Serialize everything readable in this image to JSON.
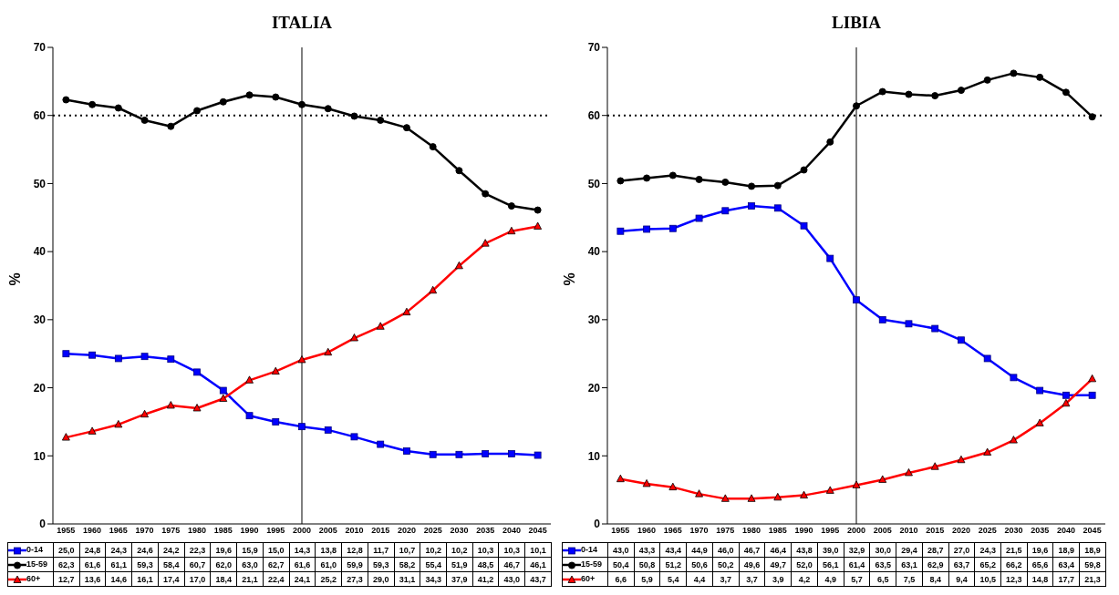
{
  "chart_data": [
    {
      "type": "line",
      "title": "ITALIA",
      "ylabel": "%",
      "legend": "bottom left",
      "categories": [
        "1955",
        "1960",
        "1965",
        "1970",
        "1975",
        "1980",
        "1985",
        "1990",
        "1995",
        "2000",
        "2005",
        "2010",
        "2015",
        "2020",
        "2025",
        "2030",
        "2035",
        "2040",
        "2045"
      ],
      "ylim": [
        0,
        70
      ],
      "yticks": [
        0,
        10,
        20,
        30,
        40,
        50,
        60,
        70
      ],
      "ref_lines": [
        {
          "axis": "y",
          "value": 60,
          "line_style": "dotted",
          "color": "#000000"
        },
        {
          "axis": "x",
          "value": "2000",
          "color": "#000000"
        }
      ],
      "series": [
        {
          "name": "0-14",
          "color": "#0000ff",
          "marker": "square",
          "values": [
            25.0,
            24.8,
            24.3,
            24.6,
            24.2,
            22.3,
            19.6,
            15.9,
            15.0,
            14.3,
            13.8,
            12.8,
            11.7,
            10.7,
            10.2,
            10.2,
            10.3,
            10.3,
            10.1
          ],
          "value_labels": [
            "25,0",
            "24,8",
            "24,3",
            "24,6",
            "24,2",
            "22,3",
            "19,6",
            "15,9",
            "15,0",
            "14,3",
            "13,8",
            "12,8",
            "11,7",
            "10,7",
            "10,2",
            "10,2",
            "10,3",
            "10,3",
            "10,1"
          ]
        },
        {
          "name": "15-59",
          "color": "#000000",
          "marker": "circle",
          "values": [
            62.3,
            61.6,
            61.1,
            59.3,
            58.4,
            60.7,
            62.0,
            63.0,
            62.7,
            61.6,
            61.0,
            59.9,
            59.3,
            58.2,
            55.4,
            51.9,
            48.5,
            46.7,
            46.1
          ],
          "value_labels": [
            "62,3",
            "61,6",
            "61,1",
            "59,3",
            "58,4",
            "60,7",
            "62,0",
            "63,0",
            "62,7",
            "61,6",
            "61,0",
            "59,9",
            "59,3",
            "58,2",
            "55,4",
            "51,9",
            "48,5",
            "46,7",
            "46,1"
          ]
        },
        {
          "name": "60+",
          "color": "#ff0000",
          "marker": "triangle",
          "values": [
            12.7,
            13.6,
            14.6,
            16.1,
            17.4,
            17.0,
            18.4,
            21.1,
            22.4,
            24.1,
            25.2,
            27.3,
            29.0,
            31.1,
            34.3,
            37.9,
            41.2,
            43.0,
            43.7
          ],
          "value_labels": [
            "12,7",
            "13,6",
            "14,6",
            "16,1",
            "17,4",
            "17,0",
            "18,4",
            "21,1",
            "22,4",
            "24,1",
            "25,2",
            "27,3",
            "29,0",
            "31,1",
            "34,3",
            "37,9",
            "41,2",
            "43,0",
            "43,7"
          ]
        }
      ]
    },
    {
      "type": "line",
      "title": "LIBIA",
      "ylabel": "%",
      "legend": "bottom left",
      "categories": [
        "1955",
        "1960",
        "1965",
        "1970",
        "1975",
        "1980",
        "1985",
        "1990",
        "1995",
        "2000",
        "2005",
        "2010",
        "2015",
        "2020",
        "2025",
        "2030",
        "2035",
        "2040",
        "2045"
      ],
      "ylim": [
        0,
        70
      ],
      "yticks": [
        0,
        10,
        20,
        30,
        40,
        50,
        60,
        70
      ],
      "ref_lines": [
        {
          "axis": "y",
          "value": 60,
          "line_style": "dotted",
          "color": "#000000"
        },
        {
          "axis": "x",
          "value": "2000",
          "color": "#000000"
        }
      ],
      "series": [
        {
          "name": "0-14",
          "color": "#0000ff",
          "marker": "square",
          "values": [
            43.0,
            43.3,
            43.4,
            44.9,
            46.0,
            46.7,
            46.4,
            43.8,
            39.0,
            32.9,
            30.0,
            29.4,
            28.7,
            27.0,
            24.3,
            21.5,
            19.6,
            18.9,
            18.9
          ],
          "value_labels": [
            "43,0",
            "43,3",
            "43,4",
            "44,9",
            "46,0",
            "46,7",
            "46,4",
            "43,8",
            "39,0",
            "32,9",
            "30,0",
            "29,4",
            "28,7",
            "27,0",
            "24,3",
            "21,5",
            "19,6",
            "18,9",
            "18,9"
          ]
        },
        {
          "name": "15-59",
          "color": "#000000",
          "marker": "circle",
          "values": [
            50.4,
            50.8,
            51.2,
            50.6,
            50.2,
            49.6,
            49.7,
            52.0,
            56.1,
            61.4,
            63.5,
            63.1,
            62.9,
            63.7,
            65.2,
            66.2,
            65.6,
            63.4,
            59.8
          ],
          "value_labels": [
            "50,4",
            "50,8",
            "51,2",
            "50,6",
            "50,2",
            "49,6",
            "49,7",
            "52,0",
            "56,1",
            "61,4",
            "63,5",
            "63,1",
            "62,9",
            "63,7",
            "65,2",
            "66,2",
            "65,6",
            "63,4",
            "59,8"
          ]
        },
        {
          "name": "60+",
          "color": "#ff0000",
          "marker": "triangle",
          "values": [
            6.6,
            5.9,
            5.4,
            4.4,
            3.7,
            3.7,
            3.9,
            4.2,
            4.9,
            5.7,
            6.5,
            7.5,
            8.4,
            9.4,
            10.5,
            12.3,
            14.8,
            17.7,
            21.3
          ],
          "value_labels": [
            "6,6",
            "5,9",
            "5,4",
            "4,4",
            "3,7",
            "3,7",
            "3,9",
            "4,2",
            "4,9",
            "5,7",
            "6,5",
            "7,5",
            "8,4",
            "9,4",
            "10,5",
            "12,3",
            "14,8",
            "17,7",
            "21,3"
          ]
        }
      ]
    }
  ]
}
